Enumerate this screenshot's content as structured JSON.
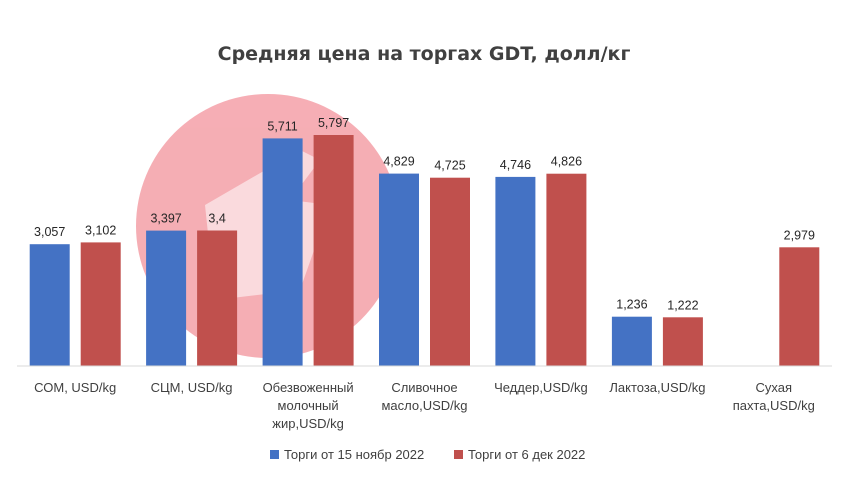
{
  "chart_data": {
    "type": "bar",
    "title": "Средняя цена на торгах GDT, долл/кг",
    "categories": [
      [
        "СОМ, USD/kg"
      ],
      [
        "СЦМ, USD/kg"
      ],
      [
        "Обезвоженный",
        "молочный",
        "жир,USD/kg"
      ],
      [
        "Сливочное",
        "масло,USD/kg"
      ],
      [
        "Чеддер,USD/kg"
      ],
      [
        "Лактоза,USD/kg"
      ],
      [
        "Сухая",
        "пахта,USD/kg"
      ]
    ],
    "series": [
      {
        "name": "Торги от 15 ноябр 2022",
        "color": "#4472c4",
        "values": [
          3.057,
          3.397,
          5.711,
          4.829,
          4.746,
          1.236,
          null
        ],
        "labels": [
          "3,057",
          "3,397",
          "5,711",
          "4,829",
          "4,746",
          "1,236",
          ""
        ]
      },
      {
        "name": "Торги от 6 дек 2022",
        "color": "#c0504d",
        "values": [
          3.102,
          3.4,
          5.797,
          4.725,
          4.826,
          1.222,
          2.979
        ],
        "labels": [
          "3,102",
          "3,4",
          "5,797",
          "4,725",
          "4,826",
          "1,222",
          "2,979"
        ]
      }
    ],
    "ylim": [
      0,
      6
    ],
    "grid": false,
    "legend_position": "bottom",
    "watermark_color": "#f4a0a8"
  }
}
